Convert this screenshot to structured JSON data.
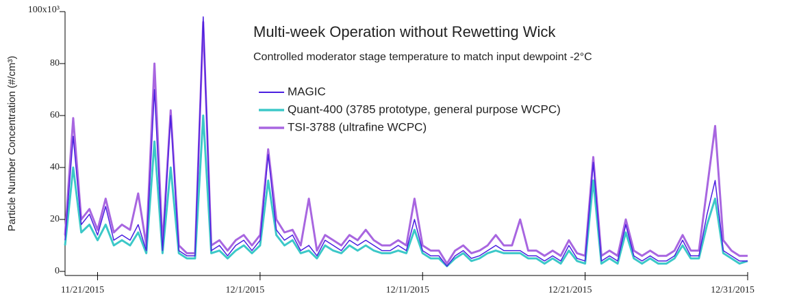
{
  "chart_data": {
    "type": "line",
    "title": "Multi-week Operation without Rewetting Wick",
    "subtitle": "Controlled moderator stage temperature to match input dewpoint -2°C",
    "y_label": "Particle Number Concentration (#/cm³)",
    "xlim": [
      "2015-11-19T00:00",
      "2015-12-31T00:00"
    ],
    "xticks": [
      {
        "value": "2015-11-21T00:00",
        "label": "11/21/2015"
      },
      {
        "value": "2015-12-01T00:00",
        "label": "12/1/2015"
      },
      {
        "value": "2015-12-11T00:00",
        "label": "12/11/2015"
      },
      {
        "value": "2015-12-21T00:00",
        "label": "12/21/2015"
      },
      {
        "value": "2015-12-31T00:00",
        "label": "12/31/2015"
      }
    ],
    "ylim": [
      0,
      100
    ],
    "yticks": [
      0,
      20,
      40,
      60,
      80,
      {
        "value": 100,
        "label": "100x10³"
      }
    ],
    "x": [
      "2015-11-19T00:00",
      "2015-11-19T12:00",
      "2015-11-20T00:00",
      "2015-11-20T12:00",
      "2015-11-21T00:00",
      "2015-11-21T12:00",
      "2015-11-22T00:00",
      "2015-11-22T12:00",
      "2015-11-23T00:00",
      "2015-11-23T12:00",
      "2015-11-24T00:00",
      "2015-11-24T12:00",
      "2015-11-25T00:00",
      "2015-11-25T12:00",
      "2015-11-26T00:00",
      "2015-11-26T12:00",
      "2015-11-27T00:00",
      "2015-11-27T12:00",
      "2015-11-28T00:00",
      "2015-11-28T12:00",
      "2015-11-29T00:00",
      "2015-11-29T12:00",
      "2015-11-30T00:00",
      "2015-11-30T12:00",
      "2015-12-01T00:00",
      "2015-12-01T12:00",
      "2015-12-02T00:00",
      "2015-12-02T12:00",
      "2015-12-03T00:00",
      "2015-12-03T12:00",
      "2015-12-04T00:00",
      "2015-12-04T12:00",
      "2015-12-05T00:00",
      "2015-12-05T12:00",
      "2015-12-06T00:00",
      "2015-12-06T12:00",
      "2015-12-07T00:00",
      "2015-12-07T12:00",
      "2015-12-08T00:00",
      "2015-12-08T12:00",
      "2015-12-09T00:00",
      "2015-12-09T12:00",
      "2015-12-10T00:00",
      "2015-12-10T12:00",
      "2015-12-11T00:00",
      "2015-12-11T12:00",
      "2015-12-12T00:00",
      "2015-12-12T12:00",
      "2015-12-13T00:00",
      "2015-12-13T12:00",
      "2015-12-14T00:00",
      "2015-12-14T12:00",
      "2015-12-15T00:00",
      "2015-12-15T12:00",
      "2015-12-16T00:00",
      "2015-12-16T12:00",
      "2015-12-17T00:00",
      "2015-12-17T12:00",
      "2015-12-18T00:00",
      "2015-12-18T12:00",
      "2015-12-19T00:00",
      "2015-12-19T12:00",
      "2015-12-20T00:00",
      "2015-12-20T12:00",
      "2015-12-21T00:00",
      "2015-12-21T12:00",
      "2015-12-22T00:00",
      "2015-12-22T12:00",
      "2015-12-23T00:00",
      "2015-12-23T12:00",
      "2015-12-24T00:00",
      "2015-12-24T12:00",
      "2015-12-25T00:00",
      "2015-12-25T12:00",
      "2015-12-26T00:00",
      "2015-12-26T12:00",
      "2015-12-27T00:00",
      "2015-12-27T12:00",
      "2015-12-28T00:00",
      "2015-12-28T12:00",
      "2015-12-29T00:00",
      "2015-12-29T12:00",
      "2015-12-30T00:00",
      "2015-12-30T12:00",
      "2015-12-31T00:00"
    ],
    "series": [
      {
        "name": "TSI-3788 (ultrafine WCPC)",
        "color": "#a866e0",
        "width": 3,
        "values": [
          14,
          59,
          20,
          24,
          16,
          28,
          15,
          18,
          16,
          30,
          10,
          80,
          10,
          62,
          10,
          7,
          7,
          96,
          10,
          12,
          8,
          12,
          14,
          10,
          14,
          47,
          20,
          15,
          16,
          10,
          28,
          8,
          14,
          12,
          10,
          14,
          12,
          16,
          12,
          10,
          10,
          12,
          10,
          28,
          10,
          8,
          8,
          3,
          8,
          10,
          7,
          8,
          10,
          14,
          10,
          10,
          20,
          8,
          8,
          6,
          8,
          6,
          12,
          7,
          6,
          44,
          6,
          8,
          6,
          20,
          8,
          6,
          8,
          6,
          6,
          8,
          14,
          8,
          8,
          32,
          56,
          12,
          8,
          6,
          6
        ]
      },
      {
        "name": "Quant-400 (3785 prototype, general purpose WCPC)",
        "color": "#3cc8c8",
        "width": 3,
        "values": [
          10,
          40,
          15,
          18,
          12,
          18,
          10,
          12,
          10,
          15,
          7,
          50,
          7,
          40,
          7,
          5,
          5,
          60,
          7,
          8,
          5,
          8,
          10,
          7,
          10,
          35,
          14,
          10,
          12,
          7,
          8,
          5,
          10,
          8,
          7,
          10,
          8,
          10,
          8,
          7,
          7,
          8,
          7,
          16,
          7,
          5,
          5,
          2,
          5,
          7,
          4,
          5,
          7,
          8,
          7,
          7,
          7,
          5,
          5,
          3,
          5,
          3,
          8,
          4,
          3,
          35,
          3,
          5,
          3,
          15,
          5,
          3,
          5,
          3,
          3,
          5,
          10,
          5,
          5,
          18,
          28,
          7,
          5,
          3,
          4
        ]
      },
      {
        "name": "MAGIC",
        "color": "#4a1ee0",
        "width": 1.5,
        "values": [
          12,
          52,
          18,
          22,
          14,
          25,
          12,
          14,
          12,
          18,
          8,
          70,
          8,
          60,
          8,
          6,
          6,
          98,
          8,
          10,
          6,
          10,
          12,
          8,
          12,
          45,
          16,
          12,
          14,
          8,
          10,
          6,
          12,
          10,
          8,
          12,
          10,
          12,
          10,
          8,
          8,
          10,
          8,
          20,
          8,
          6,
          6,
          2,
          6,
          8,
          5,
          6,
          8,
          10,
          8,
          8,
          8,
          6,
          6,
          4,
          6,
          4,
          10,
          5,
          4,
          42,
          4,
          6,
          4,
          18,
          6,
          4,
          6,
          4,
          4,
          6,
          12,
          6,
          6,
          22,
          35,
          8,
          6,
          4,
          4
        ]
      }
    ],
    "legend_order": [
      2,
      1,
      0
    ]
  }
}
